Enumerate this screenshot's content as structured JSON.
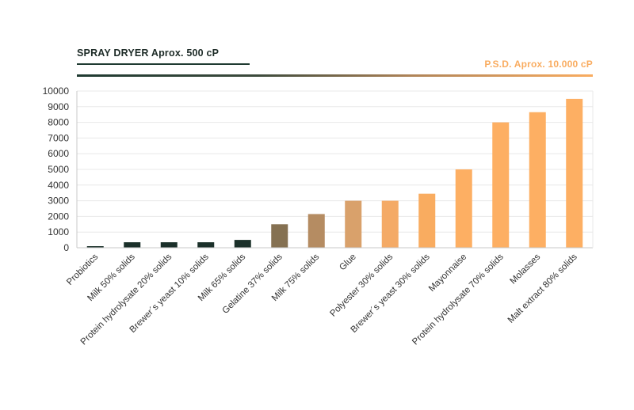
{
  "header": {
    "left_title": "SPRAY DRYER Aprox. 500 cP",
    "right_title": "P.S.D. Aprox. 10.000 cP"
  },
  "chart_data": {
    "type": "bar",
    "categories": [
      "Probiotics",
      "Milk 50% solids",
      "Protein hydrolysate 20% solids",
      "Brewer´s yeast 10% solids",
      "Milk 65% solids",
      "Gelatine 37% solids",
      "Milk 75% solids",
      "Glue",
      "Polyester 30% solids",
      "Brewer´s yeast 30% solids",
      "Mayonnaise",
      "Protein hydrolysate 70% solids",
      "Molasses",
      "Malt extract 80% solids"
    ],
    "values": [
      100,
      350,
      350,
      350,
      500,
      1500,
      2150,
      3000,
      3000,
      3450,
      5000,
      8000,
      8650,
      9500
    ],
    "bar_colors": [
      "#1b302a",
      "#1b302a",
      "#1b302a",
      "#1b302a",
      "#1b302a",
      "#857152",
      "#b58c62",
      "#d9a16b",
      "#f4aa66",
      "#f9ac60",
      "#fdaf63",
      "#fdaf63",
      "#fdaf63",
      "#fdaf63"
    ],
    "yticks": [
      0,
      1000,
      2000,
      3000,
      4000,
      5000,
      6000,
      7000,
      8000,
      9000,
      10000
    ],
    "ylim": [
      0,
      10000
    ],
    "grid": true,
    "title": "",
    "xlabel": "",
    "ylabel": ""
  },
  "colors": {
    "dark_green": "#1f3a31",
    "orange": "#f9ac60",
    "grid": "#e8e8e8",
    "axis": "#c8c8c8"
  }
}
